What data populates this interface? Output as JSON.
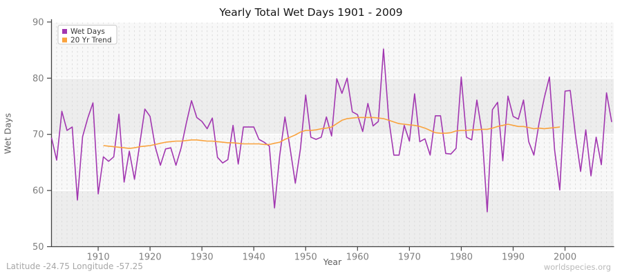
{
  "title": "Yearly Total Wet Days 1901 - 2009",
  "footer": {
    "latlong": "Latitude -24.75 Longitude -57.25",
    "watermark": "worldspecies.org"
  },
  "colors": {
    "wet_days_line": "#A136B0",
    "trend_line": "#F9A23C",
    "band_dark": "#EDEDED",
    "band_light": "#F8F8F8",
    "year_dash": "#DBDBDB",
    "gridline": "#FFFFFF",
    "axis": "#404040",
    "tick_text": "#7E7E7E",
    "legend_border": "#C9C9C9"
  },
  "chart_data": {
    "type": "line",
    "title": "Yearly Total Wet Days 1901 - 2009",
    "xlabel": "Year",
    "ylabel": "Wet Days",
    "xlim": [
      1901,
      2009
    ],
    "ylim": [
      50,
      90
    ],
    "yticks": [
      50,
      60,
      70,
      80,
      90
    ],
    "xticks": [
      1910,
      1920,
      1930,
      1940,
      1950,
      1960,
      1970,
      1980,
      1990,
      2000
    ],
    "grid": "horizontal solid white on alternating gray bands, dashed vertical line per year",
    "legend": {
      "position": "top-left",
      "entries": [
        {
          "label": "Wet Days",
          "color": "#A136B0"
        },
        {
          "label": "20 Yr Trend",
          "color": "#F9A23C"
        }
      ]
    },
    "series": [
      {
        "name": "Wet Days",
        "color": "#A136B0",
        "start_year": 1901,
        "values": [
          69.4,
          65.4,
          74.1,
          70.7,
          71.3,
          58.3,
          69.6,
          72.9,
          75.6,
          59.4,
          66.0,
          65.2,
          66.0,
          73.6,
          61.5,
          67.0,
          62.0,
          68.2,
          74.5,
          73.2,
          67.8,
          64.5,
          67.4,
          67.6,
          64.5,
          67.6,
          72.0,
          76.0,
          73.0,
          72.3,
          71.0,
          72.9,
          65.9,
          64.9,
          65.5,
          71.6,
          64.7,
          71.3,
          71.3,
          71.3,
          69.1,
          68.6,
          67.9,
          56.9,
          66.2,
          73.1,
          67.5,
          61.3,
          67.5,
          77.0,
          69.5,
          69.1,
          69.5,
          73.1,
          69.7,
          79.9,
          77.3,
          80.0,
          74.0,
          73.5,
          70.5,
          75.5,
          71.5,
          72.3,
          85.2,
          72.8,
          66.3,
          66.3,
          71.6,
          68.8,
          77.2,
          68.7,
          69.2,
          66.3,
          73.3,
          73.3,
          66.6,
          66.5,
          67.5,
          80.2,
          69.5,
          69.0,
          76.1,
          70.3,
          56.2,
          74.4,
          75.7,
          65.3,
          76.8,
          73.2,
          72.7,
          76.1,
          68.7,
          66.3,
          72.0,
          76.5,
          80.2,
          67.2,
          60.1,
          77.7,
          77.8,
          69.9,
          63.4,
          70.8,
          62.6,
          69.5,
          64.6,
          77.4,
          72.2
        ]
      },
      {
        "name": "20 Yr Trend",
        "color": "#F9A23C",
        "start_year": 1911,
        "values": [
          68.0,
          67.9,
          67.8,
          67.7,
          67.6,
          67.5,
          67.6,
          67.8,
          67.9,
          68.0,
          68.2,
          68.4,
          68.6,
          68.7,
          68.8,
          68.8,
          68.9,
          69.0,
          69.0,
          68.9,
          68.8,
          68.8,
          68.7,
          68.6,
          68.5,
          68.5,
          68.4,
          68.3,
          68.3,
          68.3,
          68.3,
          68.2,
          68.2,
          68.4,
          68.6,
          69.1,
          69.5,
          69.9,
          70.4,
          70.7,
          70.7,
          70.8,
          71.0,
          71.1,
          71.3,
          71.9,
          72.5,
          72.8,
          72.9,
          73.0,
          73.0,
          73.0,
          73.0,
          72.9,
          72.8,
          72.5,
          72.2,
          71.9,
          71.8,
          71.7,
          71.6,
          71.4,
          71.1,
          70.7,
          70.3,
          70.2,
          70.2,
          70.3,
          70.6,
          70.7,
          70.7,
          70.8,
          70.8,
          70.9,
          70.9,
          71.1,
          71.4,
          71.6,
          71.8,
          71.6,
          71.4,
          71.4,
          71.2,
          71.0,
          71.1,
          71.0,
          71.1,
          71.2,
          71.3
        ]
      }
    ]
  }
}
